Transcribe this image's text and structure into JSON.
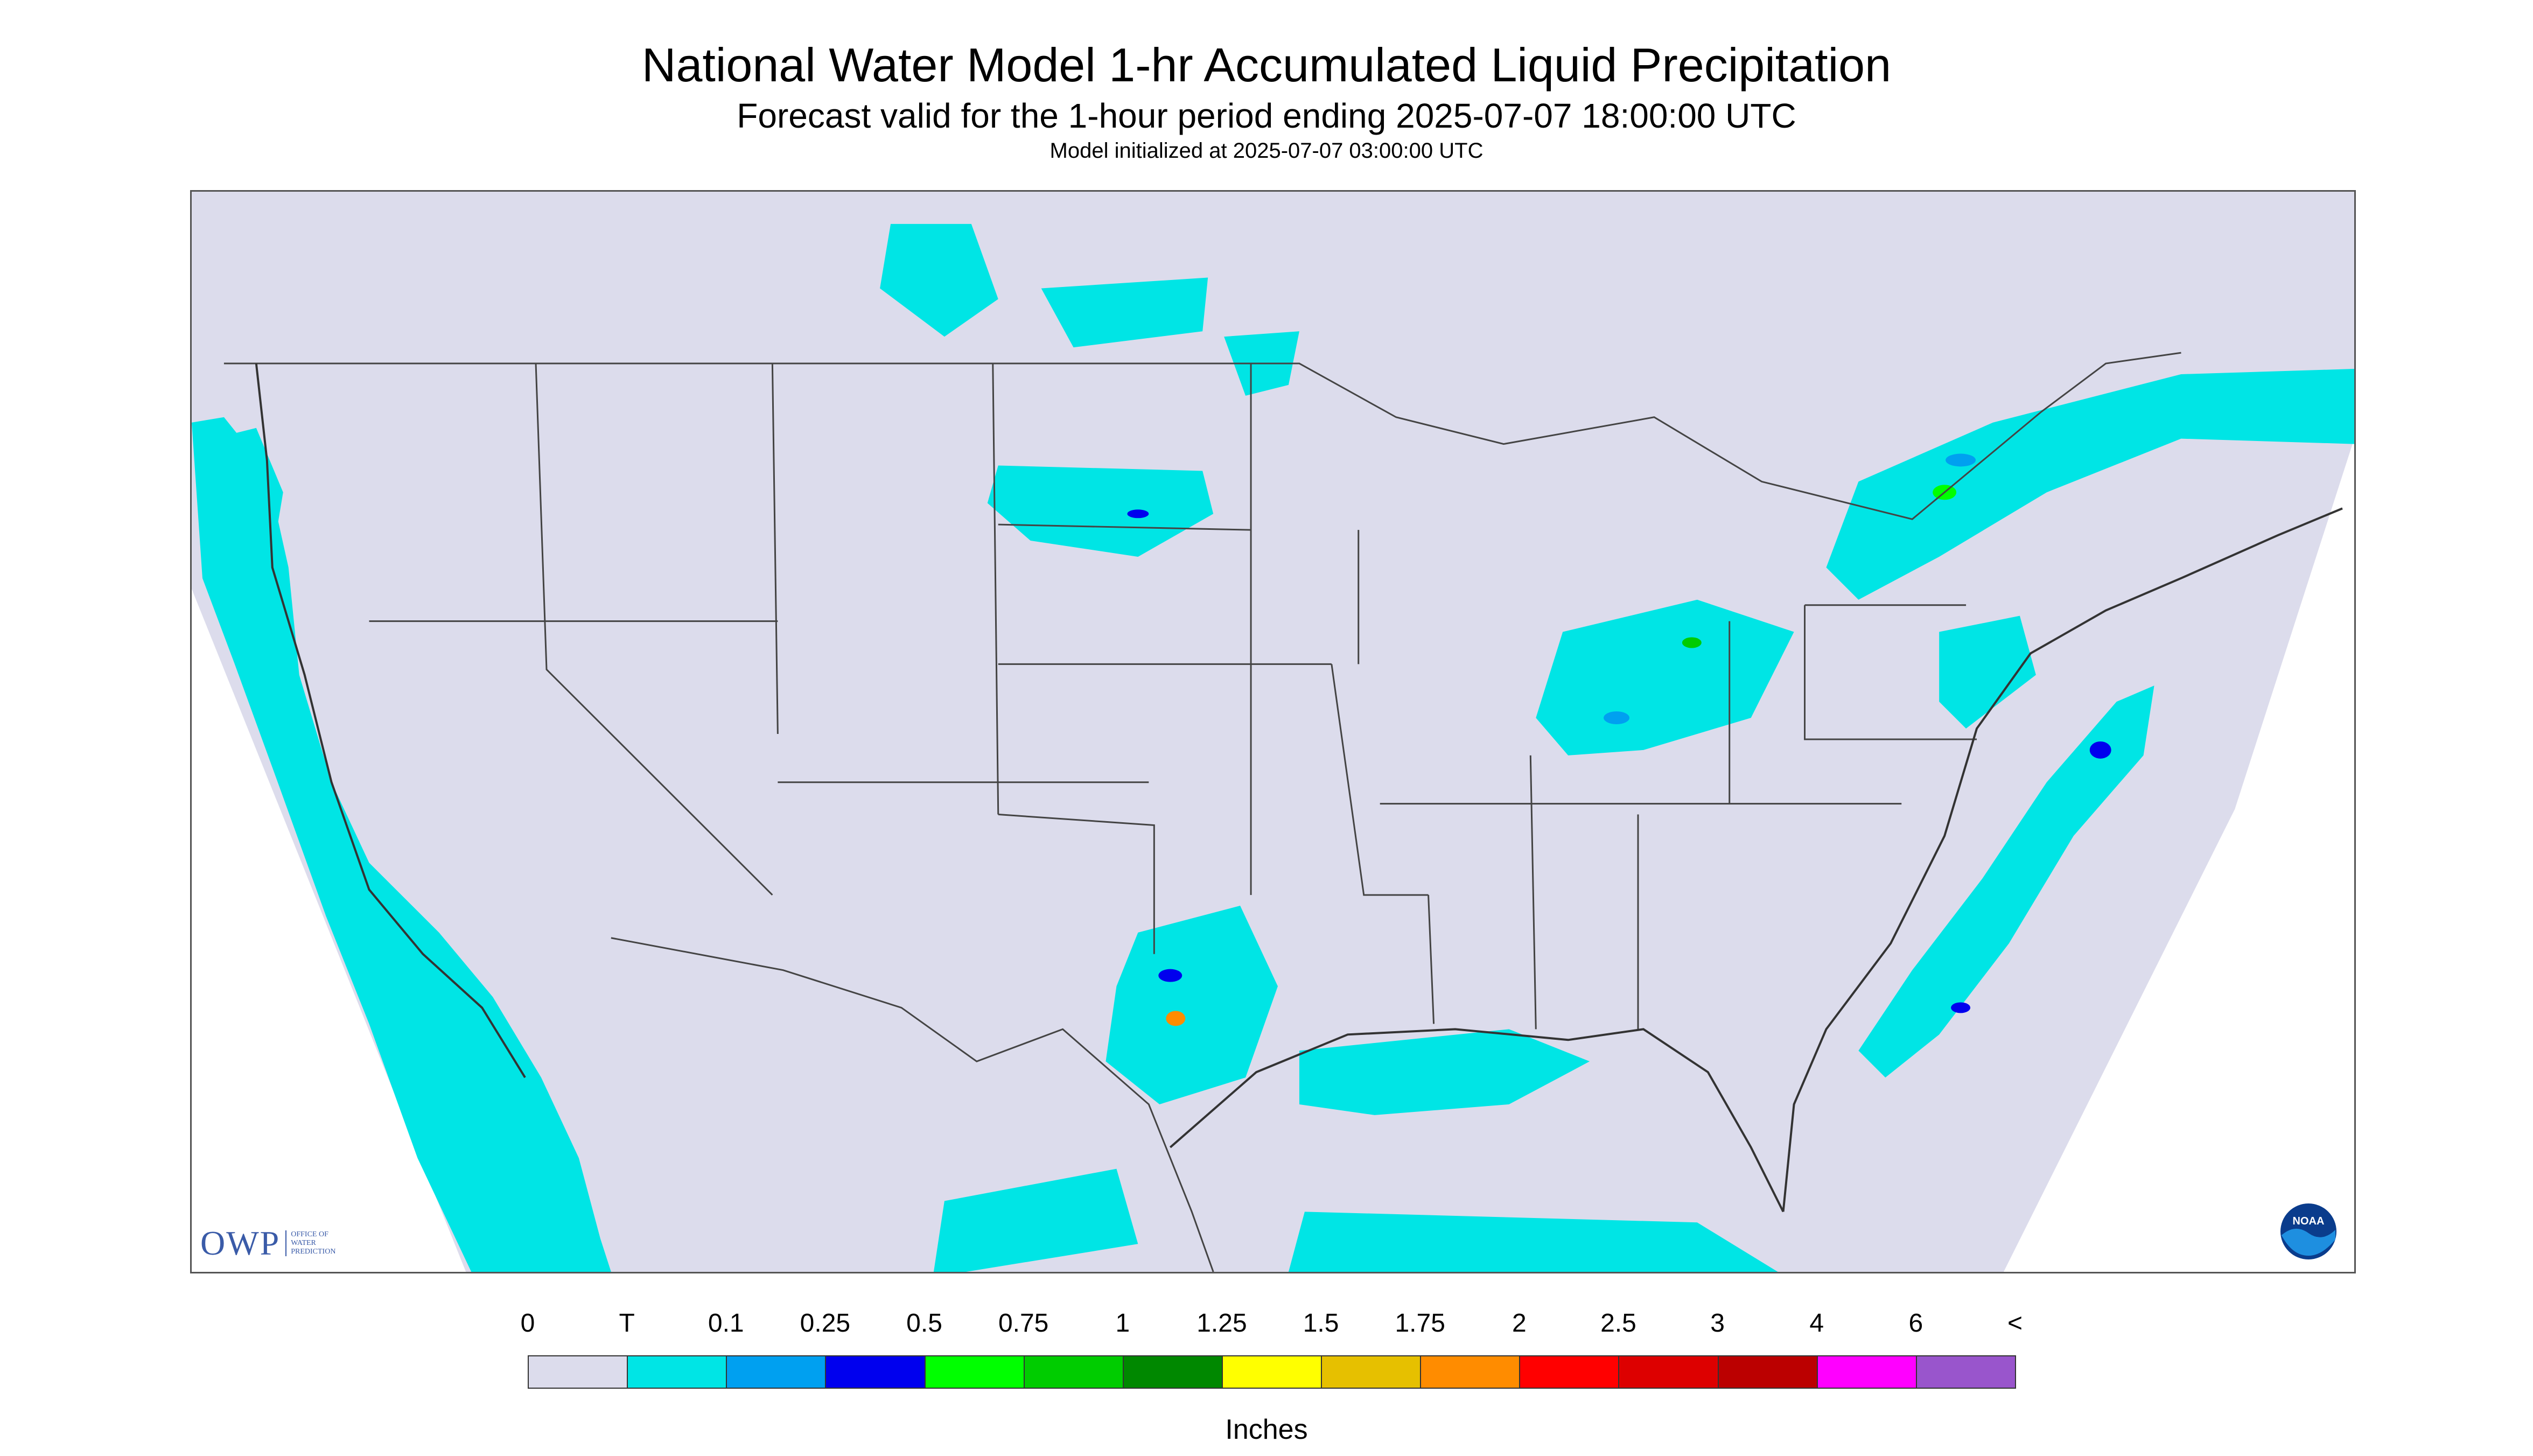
{
  "title": "National Water Model 1-hr Accumulated Liquid Precipitation",
  "subtitle": "Forecast valid for the 1-hour period ending 2025-07-07 18:00:00 UTC",
  "init_line": "Model initialized at 2025-07-07 03:00:00 UTC",
  "logos": {
    "owp_text": "OWP",
    "owp_sub": [
      "OFFICE OF",
      "WATER",
      "PREDICTION"
    ],
    "noaa_text": "NOAA"
  },
  "colors": {
    "background": "#dcdcec",
    "outside_domain": "#ffffff",
    "trace": "#00e5e5",
    "border_lines": "#444444"
  },
  "legend": {
    "tick_labels": [
      "0",
      "T",
      "0.1",
      "0.25",
      "0.5",
      "0.75",
      "1",
      "1.25",
      "1.5",
      "1.75",
      "2",
      "2.5",
      "3",
      "4",
      "6",
      "<"
    ],
    "colors": [
      "#dcdcec",
      "#00e5e5",
      "#00a0f0",
      "#0000ee",
      "#00ff00",
      "#00cc00",
      "#008800",
      "#ffff00",
      "#e6c000",
      "#ff8c00",
      "#ff0000",
      "#dd0000",
      "#bb0000",
      "#ff00ff",
      "#9955cc"
    ],
    "units": "Inches"
  }
}
